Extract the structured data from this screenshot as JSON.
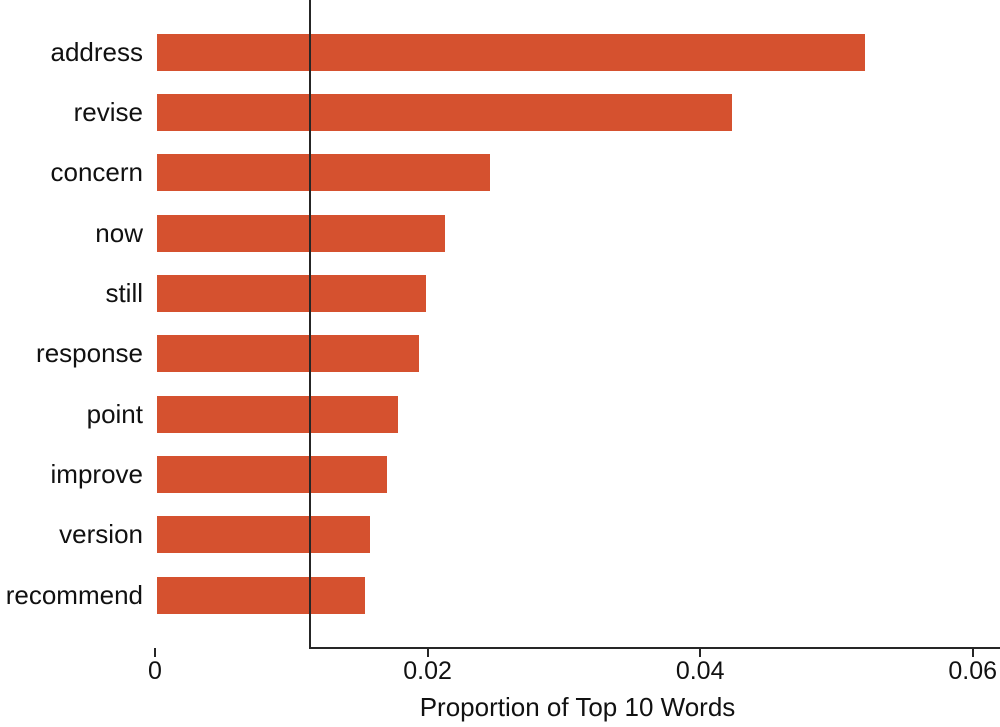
{
  "figure": {
    "background": "#ffffff"
  },
  "chart_data": {
    "type": "bar",
    "orientation": "horizontal",
    "title": "",
    "xlabel": "Proportion of Top 10 Words",
    "ylabel": "",
    "categories": [
      "address",
      "revise",
      "concern",
      "now",
      "still",
      "response",
      "point",
      "improve",
      "version",
      "recommend"
    ],
    "values": [
      0.0521,
      0.0423,
      0.0246,
      0.0213,
      0.0199,
      0.0194,
      0.0178,
      0.017,
      0.0158,
      0.0154
    ],
    "xlim": [
      0,
      0.062
    ],
    "xticks": [
      0,
      0.02,
      0.04,
      0.06
    ],
    "xtick_labels": [
      "0",
      "0.02",
      "0.04",
      "0.06"
    ],
    "grid": false,
    "legend": "none",
    "colors": {
      "bar": "#d5512f",
      "axis": "#262626",
      "text": "#111111"
    }
  }
}
